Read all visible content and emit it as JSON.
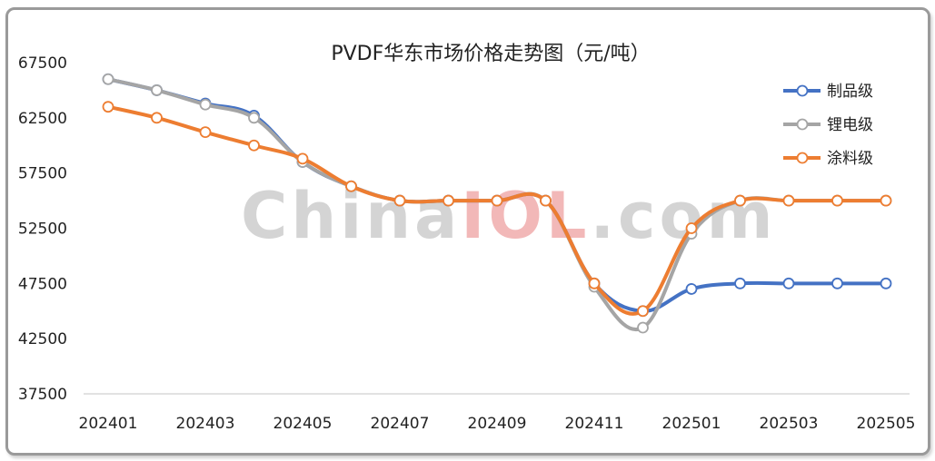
{
  "chart_data": {
    "type": "line",
    "title": "PVDF华东市场价格走势图（元/吨）",
    "watermark": [
      "China",
      "IOL",
      ".com"
    ],
    "watermark_colors": {
      "gray": "#d4d4d4",
      "red": "#f2b8b8"
    },
    "x": [
      "202401",
      "202402",
      "202403",
      "202404",
      "202405",
      "202406",
      "202407",
      "202408",
      "202409",
      "202410",
      "202411",
      "202412",
      "202501",
      "202502",
      "202503",
      "202504",
      "202505"
    ],
    "x_tick_labels": [
      "202401",
      "",
      "202403",
      "",
      "202405",
      "",
      "202407",
      "",
      "202409",
      "",
      "202411",
      "",
      "202501",
      "",
      "202503",
      "",
      "202505"
    ],
    "ylim": [
      37500,
      67500
    ],
    "y_ticks": [
      37500,
      42500,
      47500,
      52500,
      57500,
      62500,
      67500
    ],
    "grid": false,
    "legend_position": "top-right",
    "series": [
      {
        "name": "制品级",
        "color": "#4472c4",
        "values": [
          66000,
          65000,
          63800,
          62700,
          58500,
          56300,
          55000,
          55000,
          55000,
          55000,
          47500,
          45000,
          47000,
          47500,
          47500,
          47500,
          47500
        ]
      },
      {
        "name": "锂电级",
        "color": "#a5a5a5",
        "values": [
          66000,
          65000,
          63700,
          62500,
          58500,
          56300,
          55000,
          55000,
          55000,
          55000,
          47200,
          43500,
          52000,
          55000,
          55000,
          55000,
          55000
        ]
      },
      {
        "name": "涂料级",
        "color": "#ed7d31",
        "values": [
          63500,
          62500,
          61200,
          60000,
          58800,
          56300,
          55000,
          55000,
          55000,
          55000,
          47500,
          45000,
          52500,
          55000,
          55000,
          55000,
          55000
        ]
      }
    ]
  }
}
